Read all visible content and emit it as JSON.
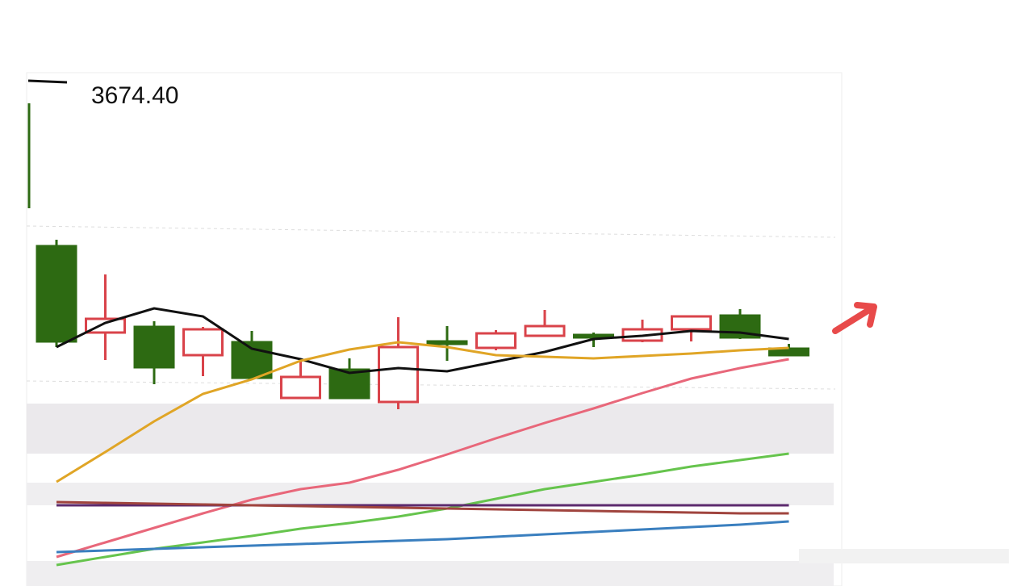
{
  "chart_data": {
    "type": "candlestick",
    "price_label": "3674.40",
    "categories": [
      null,
      null,
      null,
      null,
      null,
      null,
      null,
      null,
      null,
      null,
      null,
      null,
      null,
      null,
      null,
      null
    ],
    "open": [
      3669.5,
      3658.8,
      3659.5,
      3656.0,
      3657.6,
      3650.7,
      3654.2,
      3650.2,
      3657.7,
      3656.9,
      3658.4,
      3658.5,
      3657.8,
      3659.2,
      3660.9,
      3656.8
    ],
    "high": [
      3670.3,
      3666.0,
      3660.2,
      3659.5,
      3659.0,
      3655.3,
      3655.6,
      3660.7,
      3659.6,
      3659.1,
      3661.6,
      3658.8,
      3660.4,
      3660.8,
      3661.7,
      3657.4
    ],
    "low": [
      3657.0,
      3655.4,
      3652.4,
      3653.4,
      3653.2,
      3650.7,
      3650.7,
      3649.3,
      3655.3,
      3656.6,
      3658.4,
      3657.0,
      3657.6,
      3657.7,
      3658.0,
      3656.0
    ],
    "close": [
      3657.7,
      3660.5,
      3654.5,
      3659.2,
      3653.2,
      3653.3,
      3650.7,
      3657.0,
      3657.4,
      3658.7,
      3659.6,
      3658.2,
      3659.2,
      3660.8,
      3658.2,
      3656.0
    ],
    "up_color": "#d9434a",
    "down_color": "#2d6a12",
    "series": [
      {
        "color": "#111111",
        "values": [
          3657.0,
          3660.0,
          3661.8,
          3660.8,
          3656.8,
          3655.5,
          3653.8,
          3654.4,
          3654.0,
          3655.2,
          3656.4,
          3658.0,
          3658.4,
          3659.0,
          3658.8,
          3658.0
        ]
      },
      {
        "color": "#e0a526",
        "values": [
          3640.3,
          3644.0,
          3647.8,
          3651.2,
          3653.0,
          3655.3,
          3656.7,
          3657.6,
          3657.0,
          3656.0,
          3655.8,
          3655.6,
          3655.9,
          3656.2,
          3656.6,
          3656.9
        ]
      },
      {
        "color": "#e8677a",
        "values": [
          3631.0,
          3632.8,
          3634.6,
          3636.4,
          3638.1,
          3639.4,
          3640.2,
          3641.8,
          3643.7,
          3645.7,
          3647.6,
          3649.4,
          3651.3,
          3653.1,
          3654.4,
          3655.5
        ]
      },
      {
        "color": "#66c44d",
        "values": [
          3630.0,
          3631.0,
          3632.0,
          3632.8,
          3633.6,
          3634.5,
          3635.2,
          3636.0,
          3637.0,
          3638.2,
          3639.4,
          3640.3,
          3641.2,
          3642.2,
          3643.0,
          3643.8
        ]
      },
      {
        "color": "#3a7fbf",
        "values": [
          3631.6,
          3631.8,
          3632.0,
          3632.2,
          3632.4,
          3632.6,
          3632.8,
          3633.0,
          3633.2,
          3633.5,
          3633.8,
          3634.1,
          3634.4,
          3634.7,
          3635.0,
          3635.4
        ]
      },
      {
        "color": "#5c2a6e",
        "values": [
          3637.4,
          3637.4,
          3637.4,
          3637.4,
          3637.4,
          3637.4,
          3637.4,
          3637.4,
          3637.4,
          3637.4,
          3637.4,
          3637.4,
          3637.4,
          3637.4,
          3637.4,
          3637.4
        ]
      },
      {
        "color": "#a0443e",
        "values": [
          3637.8,
          3637.7,
          3637.6,
          3637.5,
          3637.4,
          3637.3,
          3637.2,
          3637.1,
          3637.0,
          3636.9,
          3636.8,
          3636.7,
          3636.6,
          3636.5,
          3636.4,
          3636.4
        ]
      }
    ],
    "ylim": [
      3629,
      3691
    ]
  }
}
